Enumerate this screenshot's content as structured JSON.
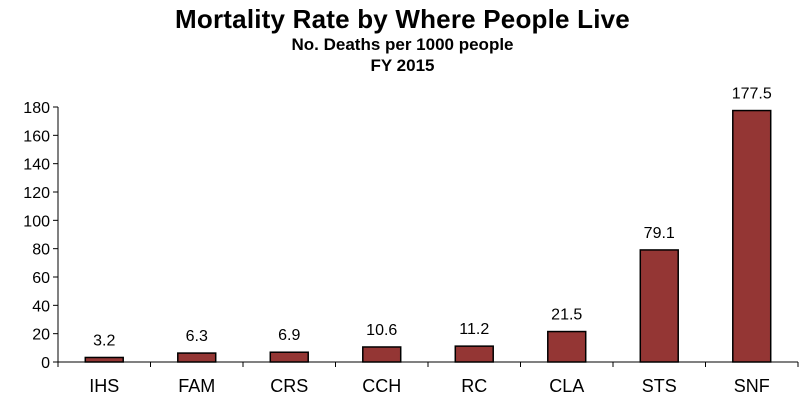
{
  "chart_data": {
    "type": "bar",
    "title": "Mortality Rate by Where People Live",
    "subtitle": "No. Deaths per 1000 people",
    "subtitle2": "FY 2015",
    "categories": [
      "IHS",
      "FAM",
      "CRS",
      "CCH",
      "RC",
      "CLA",
      "STS",
      "SNF"
    ],
    "values": [
      3.2,
      6.3,
      6.9,
      10.6,
      11.2,
      21.5,
      79.1,
      177.5
    ],
    "data_labels": [
      "3.2",
      "6.3",
      "6.9",
      "10.6",
      "11.2",
      "21.5",
      "79.1",
      "177.5"
    ],
    "ylim": [
      0,
      180
    ],
    "yticks": [
      0,
      20,
      40,
      60,
      80,
      100,
      120,
      140,
      160,
      180
    ],
    "xlabel": "",
    "ylabel": "",
    "grid": false,
    "legend": "none",
    "colors": {
      "bar_fill": "#943634",
      "bar_stroke": "#000000",
      "axis": "#000000"
    }
  }
}
